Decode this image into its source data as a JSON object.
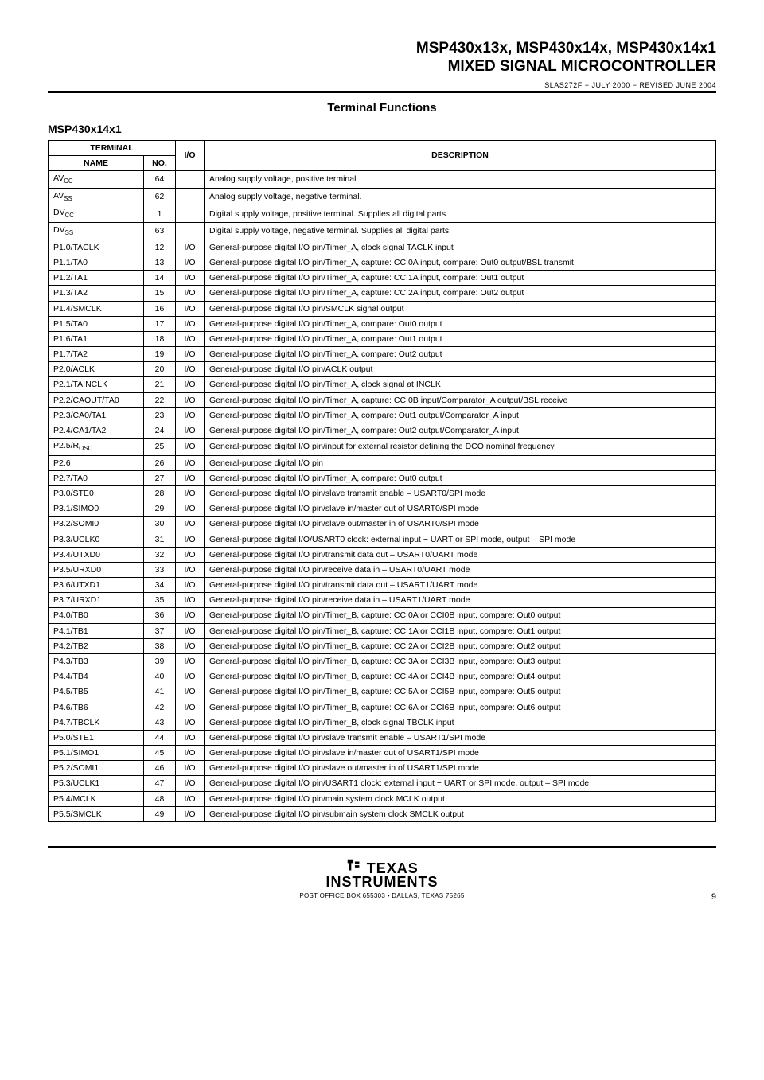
{
  "header": {
    "title_line1": "MSP430x13x, MSP430x14x, MSP430x14x1",
    "title_line2": "MIXED SIGNAL MICROCONTROLLER",
    "docnum": "SLAS272F − JULY 2000 − REVISED JUNE 2004"
  },
  "section_heading": "Terminal Functions",
  "subhead": "MSP430x14x1",
  "table": {
    "head": {
      "terminal": "TERMINAL",
      "name": "NAME",
      "no": "NO.",
      "io": "I/O",
      "desc": "DESCRIPTION"
    },
    "rows": [
      {
        "name_html": "AV<span class='sub'>CC</span>",
        "no": "64",
        "io": "",
        "desc": "Analog supply voltage, positive terminal."
      },
      {
        "name_html": "AV<span class='sub'>SS</span>",
        "no": "62",
        "io": "",
        "desc": "Analog supply voltage, negative terminal."
      },
      {
        "name_html": "DV<span class='sub'>CC</span>",
        "no": "1",
        "io": "",
        "desc": "Digital supply voltage, positive terminal. Supplies all digital parts."
      },
      {
        "name_html": "DV<span class='sub'>SS</span>",
        "no": "63",
        "io": "",
        "desc": "Digital supply voltage, negative terminal. Supplies all digital parts."
      },
      {
        "name_html": "P1.0/TACLK",
        "no": "12",
        "io": "I/O",
        "desc": "General-purpose digital I/O pin/Timer_A, clock signal TACLK input"
      },
      {
        "name_html": "P1.1/TA0",
        "no": "13",
        "io": "I/O",
        "desc": "General-purpose digital I/O pin/Timer_A, capture: CCI0A input, compare: Out0 output/BSL transmit"
      },
      {
        "name_html": "P1.2/TA1",
        "no": "14",
        "io": "I/O",
        "desc": "General-purpose digital I/O pin/Timer_A, capture: CCI1A input, compare: Out1 output"
      },
      {
        "name_html": "P1.3/TA2",
        "no": "15",
        "io": "I/O",
        "desc": "General-purpose digital I/O pin/Timer_A, capture: CCI2A input, compare: Out2 output"
      },
      {
        "name_html": "P1.4/SMCLK",
        "no": "16",
        "io": "I/O",
        "desc": "General-purpose digital I/O pin/SMCLK signal output"
      },
      {
        "name_html": "P1.5/TA0",
        "no": "17",
        "io": "I/O",
        "desc": "General-purpose digital I/O pin/Timer_A, compare: Out0 output"
      },
      {
        "name_html": "P1.6/TA1",
        "no": "18",
        "io": "I/O",
        "desc": "General-purpose digital I/O pin/Timer_A, compare: Out1 output"
      },
      {
        "name_html": "P1.7/TA2",
        "no": "19",
        "io": "I/O",
        "desc": "General-purpose digital I/O pin/Timer_A, compare: Out2 output"
      },
      {
        "name_html": "P2.0/ACLK",
        "no": "20",
        "io": "I/O",
        "desc": "General-purpose digital I/O pin/ACLK output"
      },
      {
        "name_html": "P2.1/TAINCLK",
        "no": "21",
        "io": "I/O",
        "desc": "General-purpose digital I/O pin/Timer_A, clock signal at INCLK"
      },
      {
        "name_html": "P2.2/CAOUT/TA0",
        "no": "22",
        "io": "I/O",
        "desc": "General-purpose digital I/O pin/Timer_A, capture: CCI0B input/Comparator_A output/BSL receive"
      },
      {
        "name_html": "P2.3/CA0/TA1",
        "no": "23",
        "io": "I/O",
        "desc": "General-purpose digital I/O pin/Timer_A, compare: Out1 output/Comparator_A input"
      },
      {
        "name_html": "P2.4/CA1/TA2",
        "no": "24",
        "io": "I/O",
        "desc": "General-purpose digital I/O pin/Timer_A, compare: Out2 output/Comparator_A input"
      },
      {
        "name_html": "P2.5/R<span class='sub'>OSC</span>",
        "no": "25",
        "io": "I/O",
        "desc": "General-purpose digital I/O pin/input for external resistor defining the DCO nominal frequency"
      },
      {
        "name_html": "P2.6",
        "no": "26",
        "io": "I/O",
        "desc": "General-purpose digital I/O pin"
      },
      {
        "name_html": "P2.7/TA0",
        "no": "27",
        "io": "I/O",
        "desc": "General-purpose digital I/O pin/Timer_A, compare: Out0 output"
      },
      {
        "name_html": "P3.0/STE0",
        "no": "28",
        "io": "I/O",
        "desc": "General-purpose digital I/O pin/slave transmit enable – USART0/SPI mode"
      },
      {
        "name_html": "P3.1/SIMO0",
        "no": "29",
        "io": "I/O",
        "desc": "General-purpose digital I/O pin/slave in/master out of USART0/SPI mode"
      },
      {
        "name_html": "P3.2/SOMI0",
        "no": "30",
        "io": "I/O",
        "desc": "General-purpose digital I/O pin/slave out/master in of USART0/SPI mode"
      },
      {
        "name_html": "P3.3/UCLK0",
        "no": "31",
        "io": "I/O",
        "desc": "General-purpose digital I/O/USART0 clock: external input − UART or SPI mode, output – SPI mode"
      },
      {
        "name_html": "P3.4/UTXD0",
        "no": "32",
        "io": "I/O",
        "desc": "General-purpose digital I/O pin/transmit data out – USART0/UART mode"
      },
      {
        "name_html": "P3.5/URXD0",
        "no": "33",
        "io": "I/O",
        "desc": "General-purpose digital I/O pin/receive data in – USART0/UART mode"
      },
      {
        "name_html": "P3.6/UTXD1",
        "no": "34",
        "io": "I/O",
        "desc": "General-purpose digital I/O pin/transmit data out – USART1/UART mode"
      },
      {
        "name_html": "P3.7/URXD1",
        "no": "35",
        "io": "I/O",
        "desc": "General-purpose digital I/O pin/receive data in – USART1/UART mode"
      },
      {
        "name_html": "P4.0/TB0",
        "no": "36",
        "io": "I/O",
        "desc": "General-purpose digital I/O pin/Timer_B, capture: CCI0A or CCI0B input, compare: Out0 output"
      },
      {
        "name_html": "P4.1/TB1",
        "no": "37",
        "io": "I/O",
        "desc": "General-purpose digital I/O pin/Timer_B, capture: CCI1A or CCI1B input, compare: Out1 output"
      },
      {
        "name_html": "P4.2/TB2",
        "no": "38",
        "io": "I/O",
        "desc": "General-purpose digital I/O pin/Timer_B, capture: CCI2A or CCI2B input, compare: Out2 output"
      },
      {
        "name_html": "P4.3/TB3",
        "no": "39",
        "io": "I/O",
        "desc": "General-purpose digital I/O pin/Timer_B, capture: CCI3A or CCI3B input, compare: Out3 output"
      },
      {
        "name_html": "P4.4/TB4",
        "no": "40",
        "io": "I/O",
        "desc": "General-purpose digital I/O pin/Timer_B, capture: CCI4A or CCI4B input, compare: Out4 output"
      },
      {
        "name_html": "P4.5/TB5",
        "no": "41",
        "io": "I/O",
        "desc": "General-purpose digital I/O pin/Timer_B, capture: CCI5A or CCI5B input, compare: Out5 output"
      },
      {
        "name_html": "P4.6/TB6",
        "no": "42",
        "io": "I/O",
        "desc": "General-purpose digital I/O pin/Timer_B, capture: CCI6A or CCI6B input, compare: Out6 output"
      },
      {
        "name_html": "P4.7/TBCLK",
        "no": "43",
        "io": "I/O",
        "desc": "General-purpose digital I/O pin/Timer_B, clock signal TBCLK input"
      },
      {
        "name_html": "P5.0/STE1",
        "no": "44",
        "io": "I/O",
        "desc": "General-purpose digital I/O pin/slave transmit enable – USART1/SPI mode"
      },
      {
        "name_html": "P5.1/SIMO1",
        "no": "45",
        "io": "I/O",
        "desc": "General-purpose digital I/O pin/slave in/master out of USART1/SPI mode"
      },
      {
        "name_html": "P5.2/SOMI1",
        "no": "46",
        "io": "I/O",
        "desc": "General-purpose digital I/O pin/slave out/master in of USART1/SPI mode"
      },
      {
        "name_html": "P5.3/UCLK1",
        "no": "47",
        "io": "I/O",
        "desc": "General-purpose digital I/O pin/USART1 clock: external input − UART or SPI mode, output – SPI mode"
      },
      {
        "name_html": "P5.4/MCLK",
        "no": "48",
        "io": "I/O",
        "desc": "General-purpose digital I/O pin/main system clock MCLK output"
      },
      {
        "name_html": "P5.5/SMCLK",
        "no": "49",
        "io": "I/O",
        "desc": "General-purpose digital I/O pin/submain system clock SMCLK output"
      }
    ]
  },
  "footer": {
    "texas": "TEXAS",
    "instruments": "INSTRUMENTS",
    "addr": "POST OFFICE BOX 655303 • DALLAS, TEXAS 75265",
    "pagenum": "9"
  }
}
